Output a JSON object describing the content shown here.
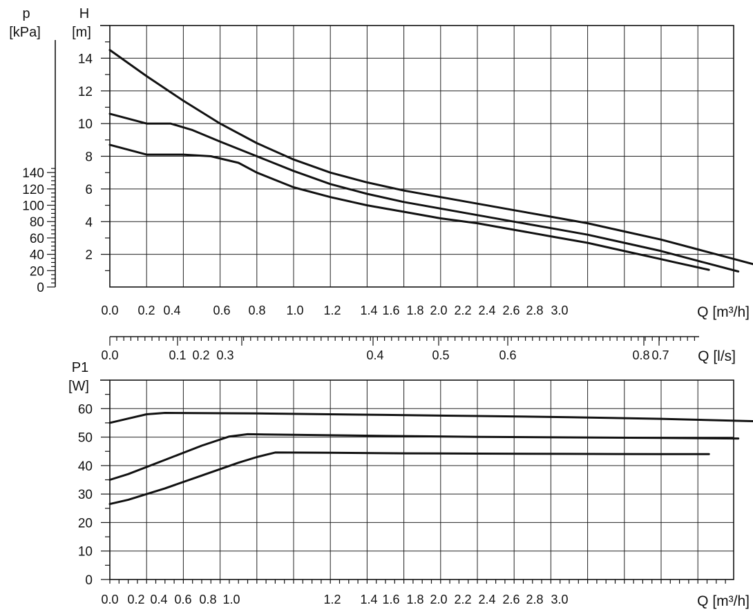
{
  "chart_data": [
    {
      "type": "line",
      "title": "",
      "xlabel": "Q [m³/h]",
      "ylabel": "H [m]",
      "y2label": "p [kPa]",
      "xlim": [
        0,
        3.8
      ],
      "ylim": [
        0,
        16
      ],
      "y2lim": [
        0,
        150
      ],
      "grid": true,
      "x_tick_labels": [
        "0.0",
        "0.2",
        "0.4",
        "0.6",
        "0.8",
        "1.0",
        "1.2",
        "1.4",
        "1.6",
        "1.8",
        "2.0",
        "2.2",
        "2.4",
        "2.6",
        "2.8",
        "3.0"
      ],
      "y_tick_labels": [
        "2",
        "4",
        "6",
        "8",
        "10",
        "12",
        "14"
      ],
      "y2_tick_labels": [
        "0",
        "20",
        "40",
        "60",
        "80",
        "100",
        "120",
        "140"
      ],
      "series": [
        {
          "x": [
            0,
            0.2,
            0.4,
            0.6,
            0.8,
            1.0,
            1.2,
            1.4,
            1.6,
            1.8,
            2.0,
            2.2,
            2.4,
            2.6,
            2.8,
            3.0,
            3.2,
            3.4,
            3.55
          ],
          "y": [
            14.5,
            12.9,
            11.4,
            10.0,
            8.8,
            7.8,
            7.0,
            6.4,
            5.9,
            5.5,
            5.1,
            4.7,
            4.3,
            3.9,
            3.4,
            2.9,
            2.3,
            1.7,
            1.25
          ]
        },
        {
          "x": [
            0,
            0.2,
            0.33,
            0.45,
            0.6,
            0.8,
            1.0,
            1.2,
            1.4,
            1.6,
            1.8,
            2.0,
            2.2,
            2.4,
            2.6,
            2.8,
            3.0,
            3.2,
            3.42
          ],
          "y": [
            10.6,
            10.0,
            10.0,
            9.6,
            8.9,
            8.0,
            7.1,
            6.3,
            5.7,
            5.2,
            4.8,
            4.4,
            4.0,
            3.6,
            3.2,
            2.7,
            2.2,
            1.6,
            0.95
          ]
        },
        {
          "x": [
            0,
            0.2,
            0.4,
            0.55,
            0.7,
            0.8,
            1.0,
            1.2,
            1.4,
            1.6,
            1.8,
            2.0,
            2.2,
            2.4,
            2.6,
            2.8,
            3.0,
            3.1,
            3.26
          ],
          "y": [
            8.7,
            8.1,
            8.1,
            8.0,
            7.6,
            7.0,
            6.1,
            5.5,
            5.0,
            4.6,
            4.2,
            3.9,
            3.5,
            3.1,
            2.7,
            2.2,
            1.7,
            1.45,
            1.05
          ]
        }
      ]
    },
    {
      "type": "line",
      "title": "",
      "xlabel": "Q [l/s]",
      "xlim": [
        0,
        1.055
      ],
      "tick_labels": [
        "0.0",
        "0.1",
        "0.2",
        "0.3",
        "0.4",
        "0.5",
        "0.6",
        "0.8",
        "0.7"
      ]
    },
    {
      "type": "line",
      "title": "",
      "xlabel": "Q [m³/h]",
      "ylabel": "P1 [W]",
      "xlim": [
        0,
        3.8
      ],
      "ylim": [
        0,
        70
      ],
      "grid": true,
      "x_tick_labels": [
        "0.0",
        "0.2",
        "0.4",
        "0.6",
        "0.8",
        "1.0",
        "1.2",
        "1.4",
        "1.6",
        "1.8",
        "2.0",
        "2.2",
        "2.4",
        "2.6",
        "2.8",
        "3.0"
      ],
      "y_tick_labels": [
        "0",
        "10",
        "20",
        "30",
        "40",
        "50",
        "60"
      ],
      "series": [
        {
          "x": [
            0,
            0.1,
            0.2,
            0.3,
            0.8,
            1.5,
            2.0,
            2.5,
            3.0,
            3.55
          ],
          "y": [
            55,
            56.5,
            58,
            58.5,
            58.3,
            57.8,
            57.4,
            57,
            56.4,
            55.5
          ]
        },
        {
          "x": [
            0,
            0.1,
            0.3,
            0.5,
            0.65,
            0.75,
            1.0,
            1.5,
            2.0,
            2.5,
            3.0,
            3.42
          ],
          "y": [
            35,
            37,
            42,
            47,
            50.2,
            51,
            50.8,
            50.4,
            50.1,
            49.9,
            49.7,
            49.5
          ]
        },
        {
          "x": [
            0,
            0.1,
            0.3,
            0.5,
            0.7,
            0.8,
            0.9,
            1.2,
            1.6,
            2.0,
            2.5,
            3.0,
            3.26
          ],
          "y": [
            26.5,
            28,
            32,
            36.5,
            41,
            43,
            44.6,
            44.5,
            44.3,
            44.2,
            44.1,
            44,
            44
          ]
        }
      ]
    }
  ]
}
